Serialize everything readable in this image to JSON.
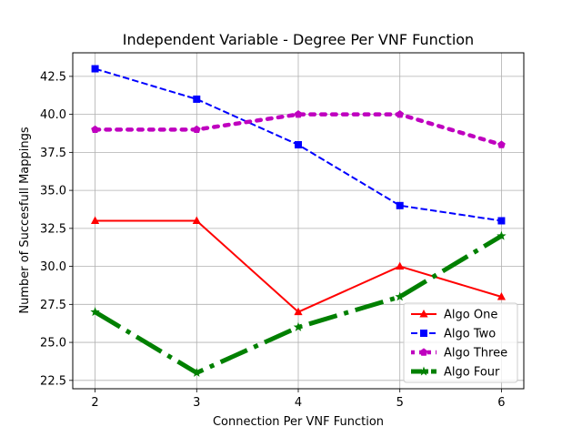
{
  "chart_data": {
    "type": "line",
    "title": "Independent Variable - Degree Per VNF Function",
    "xlabel": "Connection Per VNF Function",
    "ylabel": "Number of Succesfull Mappings",
    "x": [
      2,
      3,
      4,
      5,
      6
    ],
    "xlim": [
      1.78,
      6.22
    ],
    "ylim": [
      21.95,
      44.05
    ],
    "xticks": [
      "2",
      "3",
      "4",
      "5",
      "6"
    ],
    "yticks": [
      "22.5",
      "25.0",
      "27.5",
      "30.0",
      "32.5",
      "35.0",
      "37.5",
      "40.0",
      "42.5"
    ],
    "grid": true,
    "legend_position": "lower-right",
    "series": [
      {
        "name": "Algo One",
        "values": [
          33,
          33,
          27,
          30,
          28
        ],
        "color": "#ff0000",
        "linestyle": "solid",
        "marker": "triangle"
      },
      {
        "name": "Algo Two",
        "values": [
          43,
          41,
          38,
          34,
          33
        ],
        "color": "#0000ff",
        "linestyle": "dashed",
        "marker": "square"
      },
      {
        "name": "Algo Three",
        "values": [
          39,
          39,
          40,
          40,
          38
        ],
        "color": "#bf00bf",
        "linestyle": "dotted",
        "marker": "pentagon"
      },
      {
        "name": "Algo Four",
        "values": [
          27,
          23,
          26,
          28,
          32
        ],
        "color": "#008000",
        "linestyle": "dashdot",
        "marker": "star"
      }
    ]
  }
}
